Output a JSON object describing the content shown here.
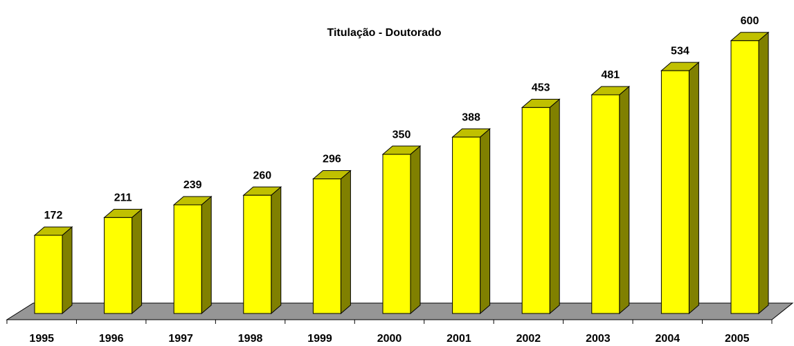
{
  "chart_data": {
    "type": "bar3d",
    "title": "Titulação - Doutorado",
    "categories": [
      "1995",
      "1996",
      "1997",
      "1998",
      "1999",
      "2000",
      "2001",
      "2002",
      "2003",
      "2004",
      "2005"
    ],
    "values": [
      172,
      211,
      239,
      260,
      296,
      350,
      388,
      453,
      481,
      534,
      600
    ],
    "color": "#ffff00"
  }
}
